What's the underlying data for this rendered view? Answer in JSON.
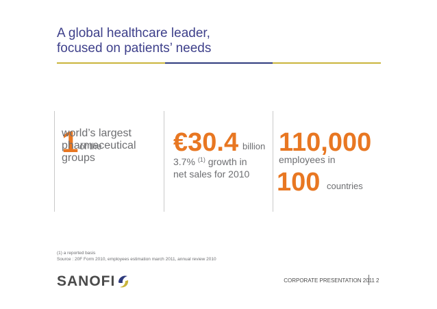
{
  "title": {
    "line1": "A global healthcare leader,",
    "line2": "focused on patients’ needs"
  },
  "stats": {
    "leader": {
      "number": "1",
      "unit": "of the",
      "desc_line1": "world’s largest",
      "desc_line2": "pharmaceutical",
      "desc_line3": "groups"
    },
    "sales": {
      "number": "€30.4",
      "unit": "billion",
      "growth_value": "3.7%",
      "growth_note": "(1)",
      "growth_text": "growth in",
      "desc_line2": "net sales for 2010"
    },
    "employees": {
      "number": "110,000",
      "desc": "employees in",
      "countries_number": "100",
      "countries_label": "countries"
    }
  },
  "footnotes": {
    "note": "(1) a reported basis",
    "source": "Source : 20F Form 2010, employees estimation march 2011, annual review 2010"
  },
  "footer": {
    "logo_text": "SANOFI",
    "presentation_label": "CORPORATE PRESENTATION 2011",
    "page_number": "2"
  },
  "colors": {
    "title": "#3d3f8a",
    "accent_orange": "#e87722",
    "gold_rule": "#c9b43b",
    "navy_rule": "#2e3a7d",
    "body_gray": "#6d6e71"
  }
}
